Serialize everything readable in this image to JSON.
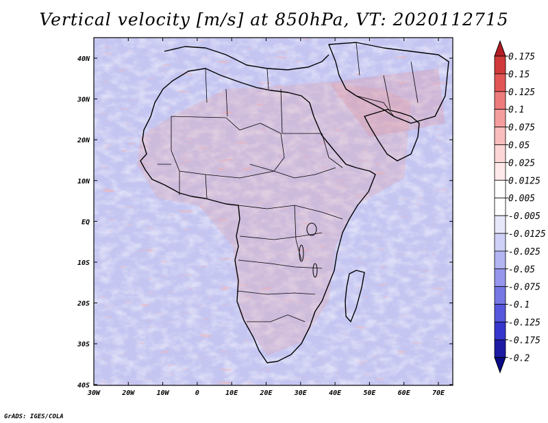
{
  "title": "Vertical velocity [m/s] at 850hPa, VT: 2020112715",
  "credit": "GrADS: IGES/COLA",
  "lat_labels": [
    "40N",
    "30N",
    "20N",
    "10N",
    "EQ",
    "10S",
    "20S",
    "30S",
    "40S"
  ],
  "lon_labels": [
    "30W",
    "20W",
    "10W",
    "0",
    "10E",
    "20E",
    "30E",
    "40E",
    "50E",
    "60E",
    "70E"
  ],
  "colorbar": {
    "labels": [
      "0.175",
      "0.15",
      "0.125",
      "0.1",
      "0.075",
      "0.05",
      "0.025",
      "0.0125",
      "0.005",
      "-0.005",
      "-0.0125",
      "-0.025",
      "-0.05",
      "-0.075",
      "-0.1",
      "-0.125",
      "-0.175",
      "-0.2"
    ],
    "colors": [
      "#b21e24",
      "#d03a3a",
      "#e35656",
      "#ee7b7b",
      "#f59e9e",
      "#f9bdbd",
      "#fcd6d6",
      "#fde9e9",
      "#ffffff",
      "#ffffff",
      "#e8e8fb",
      "#cfd0f7",
      "#b3b4f2",
      "#9596ec",
      "#7577e5",
      "#5557dc",
      "#3536cd",
      "#1b1ca3",
      "#0a0a86"
    ]
  }
}
